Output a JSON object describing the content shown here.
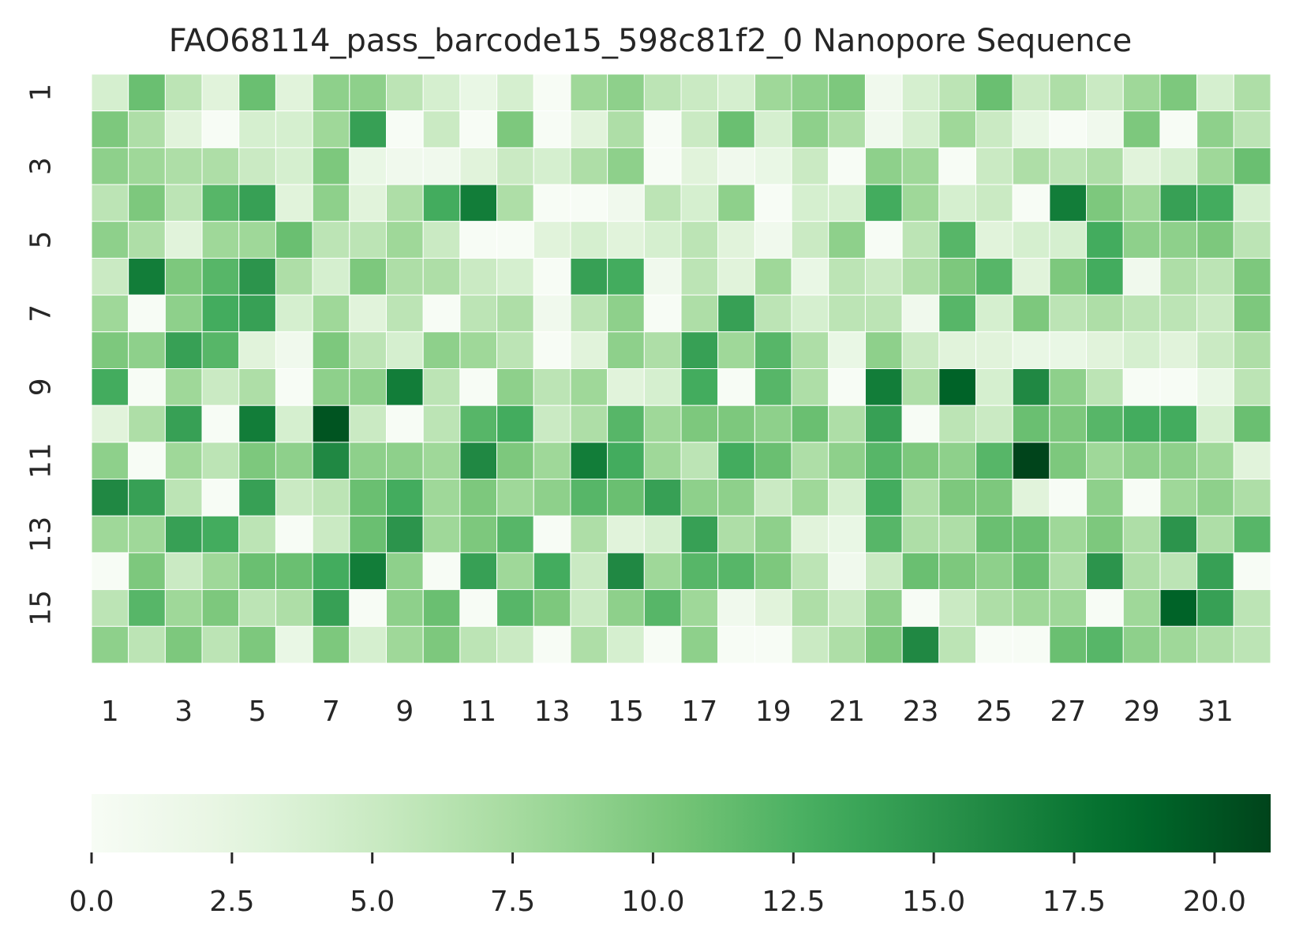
{
  "chart_data": {
    "type": "heatmap",
    "title": "FAO68114_pass_barcode15_598c81f2_0 Nanopore Sequence",
    "xlabel": "",
    "ylabel": "",
    "x_tick_labels": [
      "1",
      "3",
      "5",
      "7",
      "9",
      "11",
      "13",
      "15",
      "17",
      "19",
      "21",
      "23",
      "25",
      "27",
      "29",
      "31"
    ],
    "y_tick_labels": [
      "1",
      "3",
      "5",
      "7",
      "9",
      "11",
      "13",
      "15"
    ],
    "n_rows": 16,
    "n_cols": 32,
    "colormap": "Greens",
    "color_range": [
      0,
      21
    ],
    "colorbar": {
      "orientation": "horizontal",
      "placement": "bottom",
      "ticks": [
        "0.0",
        "2.5",
        "5.0",
        "7.5",
        "10.0",
        "12.5",
        "15.0",
        "17.5",
        "20.0"
      ]
    },
    "values": [
      [
        4,
        11,
        6,
        3,
        11,
        3,
        9,
        9,
        6,
        4,
        2,
        4,
        0,
        8,
        9,
        6,
        5,
        4,
        8,
        9,
        10,
        1,
        4,
        6,
        11,
        5,
        7,
        5,
        8,
        10,
        4,
        7
      ],
      [
        10,
        7,
        3,
        0,
        4,
        4,
        8,
        14,
        0,
        5,
        0,
        10,
        0,
        3,
        7,
        0,
        5,
        11,
        4,
        9,
        7,
        1,
        4,
        8,
        5,
        2,
        0,
        1,
        10,
        0,
        9,
        6
      ],
      [
        9,
        8,
        7,
        7,
        5,
        4,
        10,
        2,
        1,
        1,
        3,
        5,
        4,
        7,
        9,
        0,
        3,
        1,
        2,
        5,
        0,
        9,
        8,
        0,
        5,
        7,
        6,
        7,
        3,
        4,
        8,
        11
      ],
      [
        6,
        10,
        6,
        12,
        14,
        3,
        9,
        3,
        7,
        13,
        17,
        7,
        0,
        0,
        1,
        6,
        4,
        9,
        0,
        4,
        4,
        13,
        8,
        4,
        5,
        0,
        17,
        10,
        8,
        14,
        13,
        4
      ],
      [
        9,
        7,
        3,
        8,
        8,
        11,
        6,
        6,
        8,
        5,
        0,
        0,
        3,
        4,
        3,
        4,
        6,
        3,
        1,
        5,
        9,
        0,
        6,
        12,
        3,
        4,
        4,
        13,
        9,
        9,
        10,
        6
      ],
      [
        5,
        17,
        10,
        12,
        15,
        7,
        4,
        10,
        7,
        7,
        5,
        4,
        0,
        14,
        13,
        1,
        6,
        3,
        8,
        2,
        6,
        5,
        7,
        10,
        12,
        3,
        10,
        13,
        1,
        7,
        6,
        10
      ],
      [
        8,
        0,
        9,
        13,
        14,
        4,
        8,
        3,
        6,
        0,
        6,
        7,
        1,
        6,
        9,
        0,
        7,
        14,
        6,
        4,
        6,
        6,
        1,
        12,
        4,
        10,
        6,
        7,
        6,
        6,
        5,
        10
      ],
      [
        10,
        9,
        14,
        12,
        3,
        1,
        10,
        6,
        4,
        9,
        8,
        6,
        0,
        3,
        9,
        7,
        14,
        8,
        12,
        7,
        2,
        9,
        5,
        3,
        3,
        2,
        2,
        3,
        4,
        3,
        5,
        7
      ],
      [
        13,
        0,
        8,
        5,
        7,
        0,
        9,
        9,
        17,
        6,
        0,
        9,
        6,
        8,
        3,
        4,
        13,
        0,
        12,
        7,
        0,
        17,
        7,
        19,
        4,
        16,
        9,
        6,
        0,
        0,
        2,
        6
      ],
      [
        3,
        7,
        14,
        0,
        17,
        4,
        20,
        5,
        0,
        6,
        12,
        13,
        5,
        7,
        12,
        8,
        10,
        10,
        9,
        11,
        7,
        14,
        0,
        6,
        5,
        11,
        10,
        12,
        13,
        13,
        4,
        11
      ],
      [
        9,
        0,
        8,
        6,
        10,
        9,
        16,
        9,
        9,
        8,
        16,
        10,
        8,
        17,
        13,
        8,
        6,
        13,
        11,
        7,
        9,
        12,
        10,
        9,
        12,
        21,
        10,
        8,
        9,
        9,
        8,
        3
      ],
      [
        16,
        14,
        6,
        0,
        14,
        5,
        6,
        11,
        13,
        8,
        10,
        8,
        9,
        12,
        11,
        14,
        9,
        9,
        5,
        8,
        4,
        13,
        7,
        10,
        10,
        3,
        0,
        9,
        0,
        8,
        9,
        7
      ],
      [
        8,
        8,
        14,
        13,
        6,
        0,
        5,
        11,
        15,
        8,
        10,
        12,
        0,
        7,
        3,
        4,
        14,
        7,
        9,
        3,
        2,
        12,
        7,
        7,
        11,
        11,
        8,
        10,
        7,
        15,
        7,
        12
      ],
      [
        0,
        10,
        5,
        8,
        11,
        11,
        13,
        17,
        9,
        0,
        14,
        8,
        13,
        5,
        16,
        8,
        12,
        12,
        10,
        6,
        1,
        5,
        11,
        10,
        9,
        11,
        7,
        15,
        7,
        6,
        14,
        0
      ],
      [
        6,
        12,
        8,
        10,
        6,
        7,
        14,
        0,
        9,
        11,
        0,
        12,
        10,
        5,
        9,
        12,
        8,
        1,
        3,
        7,
        5,
        9,
        0,
        5,
        7,
        8,
        8,
        0,
        8,
        19,
        14,
        6
      ],
      [
        9,
        6,
        10,
        6,
        10,
        2,
        10,
        4,
        8,
        10,
        6,
        5,
        0,
        7,
        4,
        0,
        9,
        0,
        0,
        5,
        7,
        10,
        16,
        6,
        0,
        0,
        11,
        12,
        9,
        8,
        7,
        6
      ]
    ]
  }
}
